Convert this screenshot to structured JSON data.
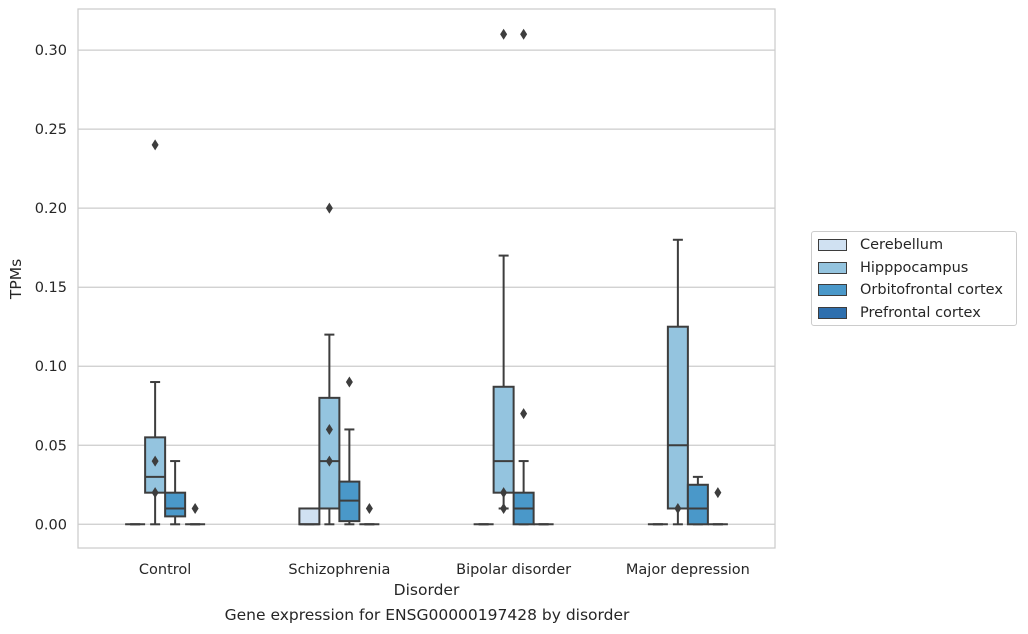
{
  "chart_data": {
    "type": "box",
    "title": "",
    "caption": "Gene expression for ENSG00000197428 by disorder",
    "xlabel": "Disorder",
    "ylabel": "TPMs",
    "ylim": [
      -0.015,
      0.326
    ],
    "yticks": [
      "0.00",
      "0.05",
      "0.10",
      "0.15",
      "0.20",
      "0.25",
      "0.30"
    ],
    "grid": "horizontal",
    "legend_position": "right-center",
    "categories": [
      "Control",
      "Schizophrenia",
      "Bipolar disorder",
      "Major depression"
    ],
    "series": [
      {
        "name": "Cerebellum",
        "color": "#d0e1f2",
        "boxes": [
          {
            "min": 0,
            "q1": 0,
            "median": 0,
            "q3": 0,
            "max": 0,
            "outliers": []
          },
          {
            "min": 0,
            "q1": 0,
            "median": 0,
            "q3": 0.01,
            "max": 0.01,
            "outliers": []
          },
          {
            "min": 0,
            "q1": 0,
            "median": 0,
            "q3": 0,
            "max": 0,
            "outliers": []
          },
          {
            "min": 0,
            "q1": 0,
            "median": 0,
            "q3": 0,
            "max": 0,
            "outliers": []
          }
        ]
      },
      {
        "name": "Hipppocampus",
        "color": "#94c4df",
        "boxes": [
          {
            "min": 0,
            "q1": 0.02,
            "median": 0.03,
            "q3": 0.055,
            "max": 0.09,
            "outliers": [
              0.02,
              0.04,
              0.24
            ]
          },
          {
            "min": 0,
            "q1": 0.01,
            "median": 0.04,
            "q3": 0.08,
            "max": 0.12,
            "outliers": [
              0.04,
              0.06,
              0.2
            ]
          },
          {
            "min": 0.01,
            "q1": 0.02,
            "median": 0.04,
            "q3": 0.087,
            "max": 0.17,
            "outliers": [
              0.01,
              0.02,
              0.31
            ]
          },
          {
            "min": 0,
            "q1": 0.01,
            "median": 0.05,
            "q3": 0.125,
            "max": 0.18,
            "outliers": [
              0.01
            ]
          }
        ]
      },
      {
        "name": "Orbitofrontal cortex",
        "color": "#4a98c9",
        "boxes": [
          {
            "min": 0,
            "q1": 0.005,
            "median": 0.01,
            "q3": 0.02,
            "max": 0.04,
            "outliers": []
          },
          {
            "min": 0,
            "q1": 0.002,
            "median": 0.015,
            "q3": 0.027,
            "max": 0.06,
            "outliers": [
              0.09
            ]
          },
          {
            "min": 0,
            "q1": 0,
            "median": 0.01,
            "q3": 0.02,
            "max": 0.04,
            "outliers": [
              0.07,
              0.31
            ]
          },
          {
            "min": 0,
            "q1": 0,
            "median": 0.01,
            "q3": 0.025,
            "max": 0.03,
            "outliers": []
          }
        ]
      },
      {
        "name": "Prefrontal cortex",
        "color": "#2e6fae",
        "boxes": [
          {
            "min": 0,
            "q1": 0,
            "median": 0,
            "q3": 0,
            "max": 0,
            "outliers": [
              0.01
            ]
          },
          {
            "min": 0,
            "q1": 0,
            "median": 0,
            "q3": 0,
            "max": 0,
            "outliers": [
              0.01
            ]
          },
          {
            "min": 0,
            "q1": 0,
            "median": 0,
            "q3": 0,
            "max": 0,
            "outliers": []
          },
          {
            "min": 0,
            "q1": 0,
            "median": 0,
            "q3": 0,
            "max": 0,
            "outliers": [
              0.02
            ]
          }
        ]
      }
    ]
  }
}
